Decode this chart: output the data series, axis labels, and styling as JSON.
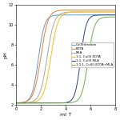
{
  "title": "",
  "xlabel": "ml ↑",
  "ylabel": "pH",
  "xlim": [
    0,
    8
  ],
  "ylim": [
    2,
    12
  ],
  "xticks": [
    0,
    2,
    4,
    6,
    8
  ],
  "yticks": [
    2,
    4,
    6,
    8,
    10,
    12
  ],
  "legend_labels": [
    "Cu(II)titration",
    "EDTA",
    "MLA",
    "1:1, Cu(II) EDTA",
    "1:1, Cu(II) MLA",
    "1:1:1, Cu(II)-EDTA+MLA"
  ],
  "legend_colors": [
    "#5B9BD5",
    "#ED7D31",
    "#A5A5A5",
    "#FFC000",
    "#264478",
    "#70AD47"
  ],
  "curves": [
    {
      "color": "#5B9BD5",
      "x_inflection": 1.8,
      "steepness": 4.0,
      "y_lower": 2.2,
      "y_upper": 11.0
    },
    {
      "color": "#ED7D31",
      "x_inflection": 2.0,
      "steepness": 3.5,
      "y_lower": 2.2,
      "y_upper": 11.5
    },
    {
      "color": "#A5A5A5",
      "x_inflection": 2.5,
      "steepness": 3.5,
      "y_lower": 2.2,
      "y_upper": 11.3
    },
    {
      "color": "#FFC000",
      "x_inflection": 2.8,
      "steepness": 3.5,
      "y_lower": 2.2,
      "y_upper": 11.3
    },
    {
      "color": "#264478",
      "x_inflection": 5.2,
      "steepness": 4.5,
      "y_lower": 2.2,
      "y_upper": 11.0
    },
    {
      "color": "#70AD47",
      "x_inflection": 5.8,
      "steepness": 4.0,
      "y_lower": 2.2,
      "y_upper": 10.8
    }
  ],
  "figsize": [
    1.5,
    1.5
  ],
  "dpi": 100,
  "linewidth": 0.7,
  "legend_fontsize": 2.8,
  "axis_fontsize": 4.5,
  "tick_fontsize": 3.5
}
